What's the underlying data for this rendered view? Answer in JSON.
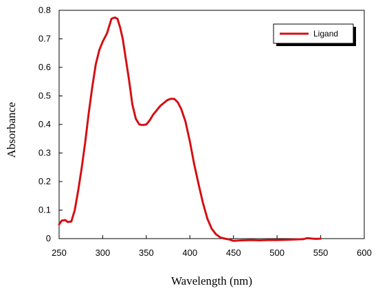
{
  "chart_data": {
    "type": "line",
    "title": "",
    "xlabel": "Wavelength (nm)",
    "ylabel": "Absorbance",
    "xlim": [
      250,
      600
    ],
    "ylim": [
      0,
      0.8
    ],
    "x_ticks": [
      "250",
      "300",
      "350",
      "400",
      "450",
      "500",
      "550",
      "600"
    ],
    "y_ticks": [
      "0",
      "0.1",
      "0.2",
      "0.3",
      "0.4",
      "0.5",
      "0.6",
      "0.7",
      "0.8"
    ],
    "grid": false,
    "legend": {
      "position": "top-right",
      "entries": [
        "Ligand"
      ]
    },
    "series": [
      {
        "name": "Ligand",
        "color": "#d40f14",
        "x": [
          250,
          253,
          257,
          260,
          264,
          268,
          272,
          276,
          280,
          284,
          288,
          292,
          296,
          300,
          305,
          310,
          314,
          317,
          320,
          323,
          326,
          330,
          334,
          338,
          342,
          346,
          350,
          354,
          358,
          362,
          366,
          370,
          374,
          378,
          382,
          386,
          390,
          395,
          400,
          405,
          410,
          415,
          420,
          425,
          430,
          435,
          440,
          445,
          450,
          460,
          470,
          480,
          490,
          500,
          510,
          520,
          530,
          535,
          540,
          545,
          550
        ],
        "y": [
          0.05,
          0.063,
          0.065,
          0.058,
          0.06,
          0.1,
          0.17,
          0.25,
          0.34,
          0.44,
          0.53,
          0.61,
          0.66,
          0.69,
          0.72,
          0.77,
          0.775,
          0.77,
          0.74,
          0.7,
          0.64,
          0.56,
          0.47,
          0.42,
          0.4,
          0.398,
          0.4,
          0.415,
          0.435,
          0.45,
          0.465,
          0.475,
          0.485,
          0.49,
          0.49,
          0.478,
          0.455,
          0.41,
          0.34,
          0.26,
          0.19,
          0.125,
          0.07,
          0.035,
          0.015,
          0.004,
          0.0,
          -0.003,
          -0.008,
          -0.006,
          -0.005,
          -0.006,
          -0.005,
          -0.005,
          -0.004,
          -0.003,
          -0.002,
          0.002,
          0.0,
          -0.001,
          0.0
        ]
      }
    ]
  }
}
